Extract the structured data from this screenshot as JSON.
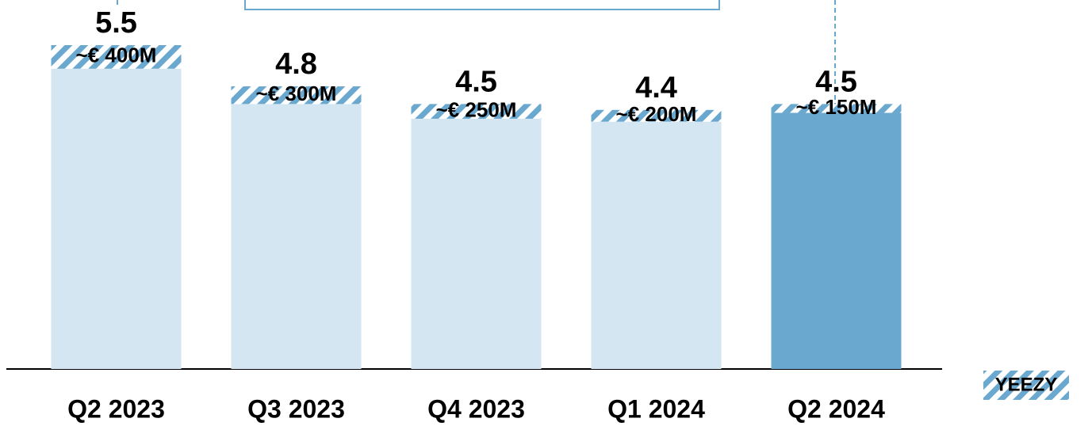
{
  "chart_data": {
    "type": "stacked-bar",
    "categories": [
      "Q2 2023",
      "Q3 2023",
      "Q4 2023",
      "Q1 2024",
      "Q2 2024"
    ],
    "series": [
      {
        "colors": [
          "#d4e6f1",
          "#d4e6f1",
          "#d4e6f1",
          "#d4e6f1",
          "#6aa8cf"
        ],
        "values": [
          5.1,
          4.5,
          4.25,
          4.2,
          4.35
        ]
      },
      {
        "name": "YEEZY",
        "color": "#6aa8cf",
        "values": [
          0.4,
          0.3,
          0.25,
          0.2,
          0.15
        ],
        "value_labels": [
          "~€ 400M",
          "~€ 300M",
          "~€ 250M",
          "~€ 200M",
          "~€ 150M"
        ]
      }
    ],
    "totals": [
      5.5,
      4.8,
      4.5,
      4.4,
      4.5
    ]
  }
}
